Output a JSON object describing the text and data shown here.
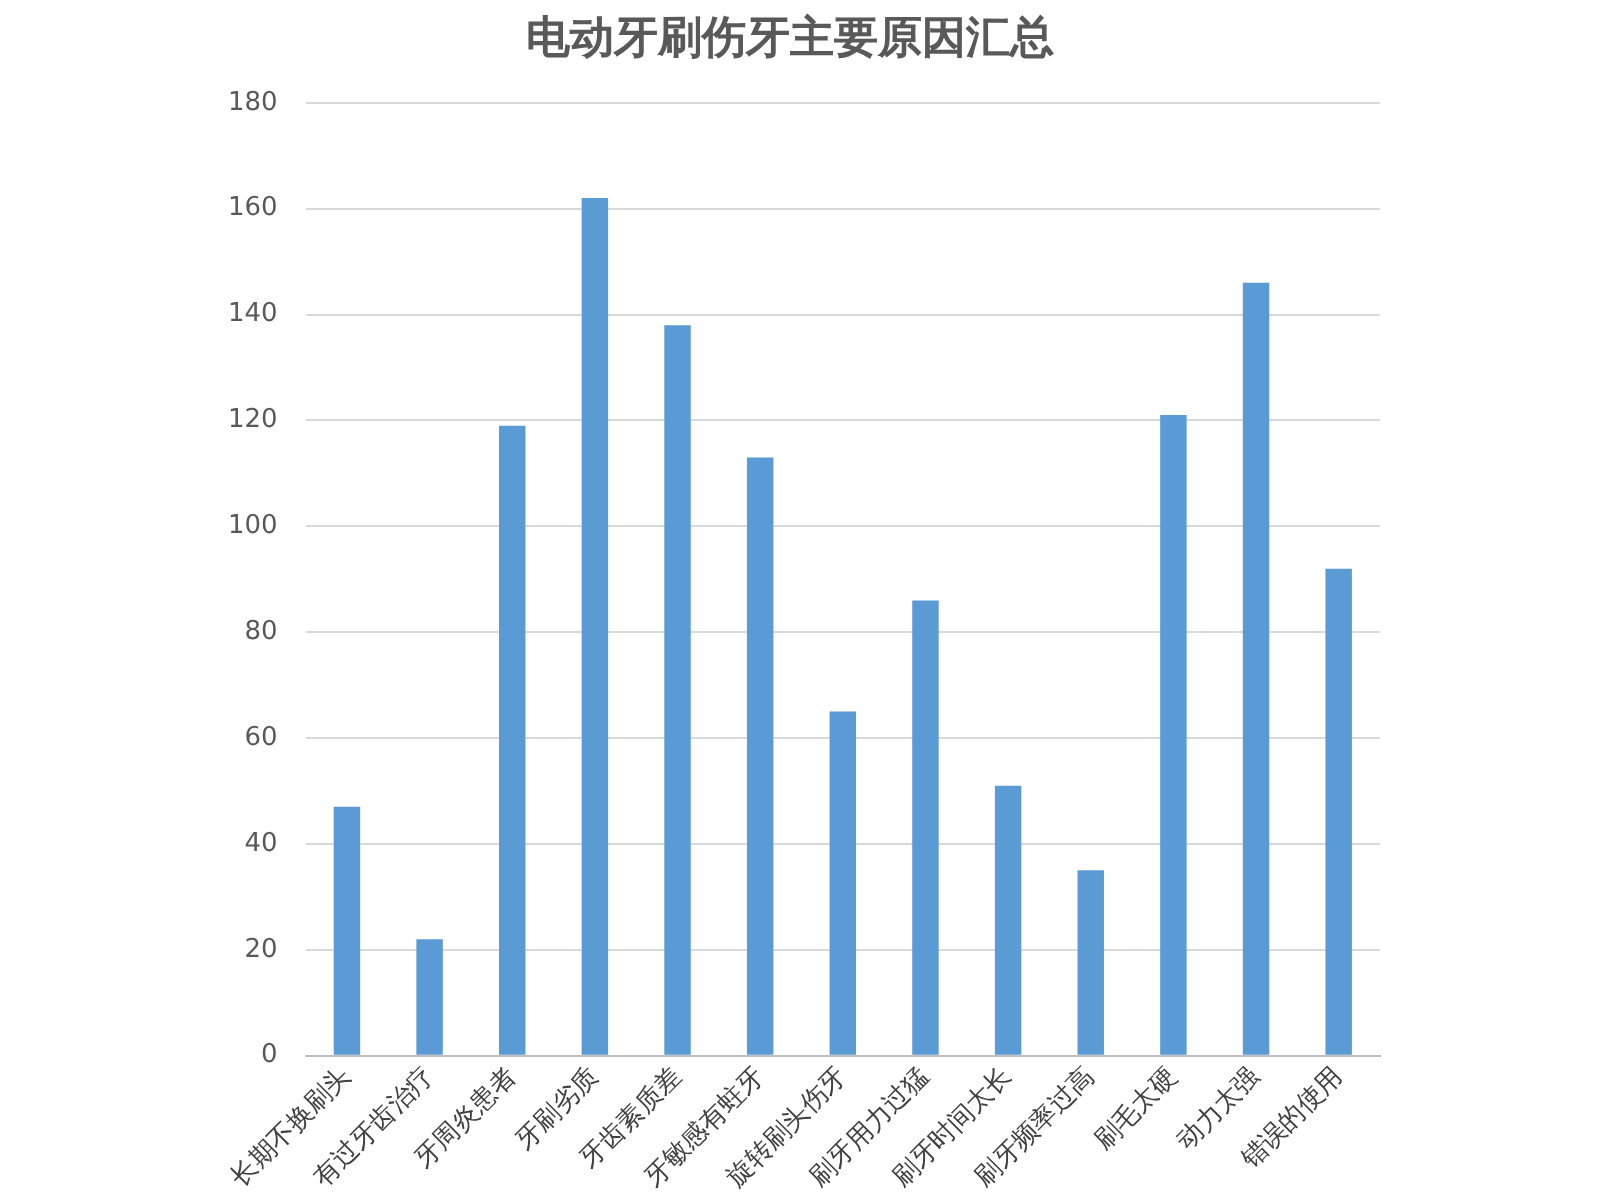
{
  "chart_data": {
    "type": "bar",
    "title": "电动牙刷伤牙主要原因汇总",
    "categories": [
      "长期不换刷头",
      "有过牙齿治疗",
      "牙周炎患者",
      "牙刷劣质",
      "牙齿素质差",
      "牙敏感有蛀牙",
      "旋转刷头伤牙",
      "刷牙用力过猛",
      "刷牙时间太长",
      "刷牙频率过高",
      "刷毛太硬",
      "动力太强",
      "错误的使用"
    ],
    "values": [
      47,
      22,
      119,
      162,
      138,
      113,
      65,
      86,
      51,
      35,
      121,
      146,
      92
    ],
    "color": "#5b9bd5",
    "ylim": [
      0,
      180
    ],
    "yticks": [
      0,
      20,
      40,
      60,
      80,
      100,
      120,
      140,
      160,
      180
    ],
    "grid": "y",
    "legend": false
  }
}
